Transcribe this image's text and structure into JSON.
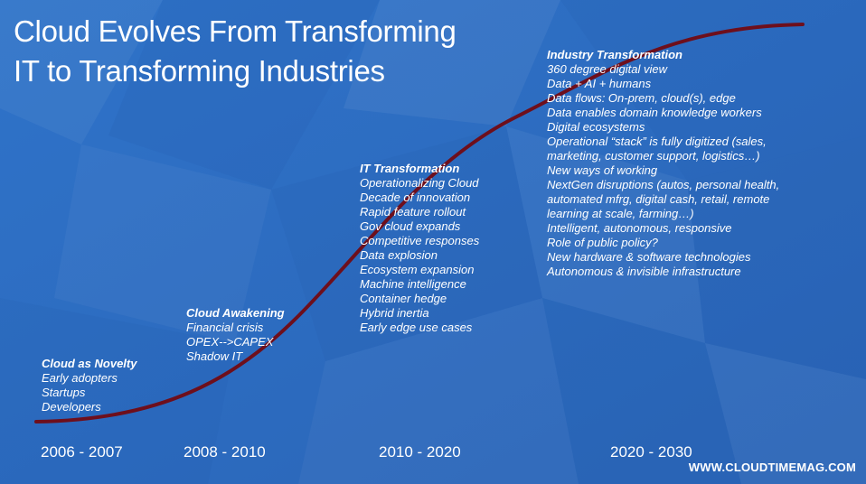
{
  "title": {
    "line1": "Cloud Evolves From Transforming",
    "line2": "IT to Transforming Industries"
  },
  "stages": {
    "novelty": {
      "heading": "Cloud as Novelty",
      "items": [
        "Early adopters",
        "Startups",
        "Developers"
      ]
    },
    "awakening": {
      "heading": "Cloud Awakening",
      "items": [
        "Financial crisis",
        "OPEX-->CAPEX",
        "Shadow IT"
      ]
    },
    "it_transformation": {
      "heading": "IT Transformation",
      "items": [
        "Operationalizing Cloud",
        "Decade of innovation",
        "Rapid feature rollout",
        "Gov cloud expands",
        "Competitive responses",
        "Data explosion",
        "Ecosystem expansion",
        "Machine intelligence",
        "Container hedge",
        "Hybrid inertia",
        "Early edge use cases"
      ]
    },
    "industry_transformation": {
      "heading": "Industry Transformation",
      "items": [
        "360 degree digital view",
        "Data + AI + humans",
        "Data flows: On-prem, cloud(s), edge",
        "Data enables domain knowledge workers",
        "Digital ecosystems",
        "Operational “stack” is fully digitized (sales,",
        "marketing, customer support, logistics…)",
        "New ways of working",
        "NextGen disruptions (autos, personal health,",
        "automated mfrg, digital cash, retail, remote",
        "learning at scale, farming…)",
        "Intelligent, autonomous, responsive",
        "Role of public policy?",
        "New hardware & software technologies",
        "Autonomous & invisible infrastructure"
      ]
    }
  },
  "eras": [
    "2006 - 2007",
    "2008 - 2010",
    "2010 - 2020",
    "2020 - 2030"
  ],
  "watermark": "WWW.CLOUDTIMEMAG.COM",
  "colors": {
    "background": "#2d6fc4",
    "curve": "#6e0f1c",
    "text": "#ffffff"
  }
}
